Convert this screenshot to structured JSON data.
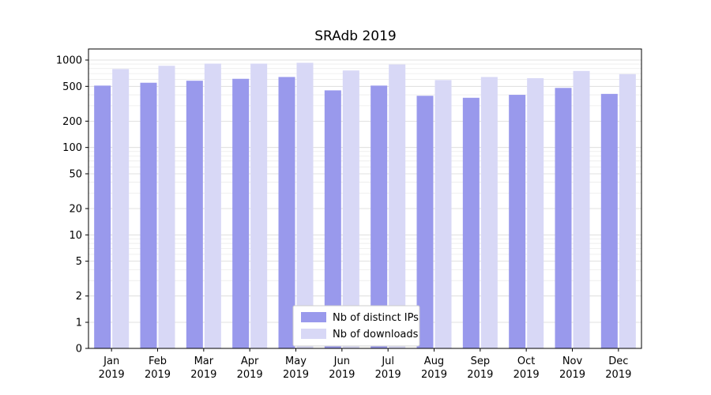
{
  "title": "SRAdb 2019",
  "chart_data": {
    "type": "bar",
    "title": "SRAdb 2019",
    "scale": "symlog",
    "grid": true,
    "legend_position": "bottom-center",
    "categories": [
      "Jan",
      "Feb",
      "Mar",
      "Apr",
      "May",
      "Jun",
      "Jul",
      "Aug",
      "Sep",
      "Oct",
      "Nov",
      "Dec"
    ],
    "category_year": "2019",
    "yticks": [
      1000,
      500,
      200,
      100,
      50,
      20,
      10,
      5,
      2,
      1,
      0
    ],
    "ylim": [
      0,
      1100
    ],
    "series": [
      {
        "name": "Nb of distinct IPs",
        "color": "#9999ec",
        "values": [
          510,
          550,
          580,
          610,
          640,
          450,
          510,
          390,
          370,
          400,
          480,
          410
        ]
      },
      {
        "name": "Nb of downloads",
        "color": "#d8d8f6",
        "values": [
          790,
          860,
          910,
          910,
          930,
          760,
          890,
          590,
          640,
          620,
          750,
          690
        ]
      }
    ],
    "colors": {
      "grid_major": "#d9d9d9",
      "grid_minor": "#ebebeb",
      "axis": "#000000",
      "legend_border": "#cccccc",
      "legend_bg": "#ffffff"
    }
  }
}
